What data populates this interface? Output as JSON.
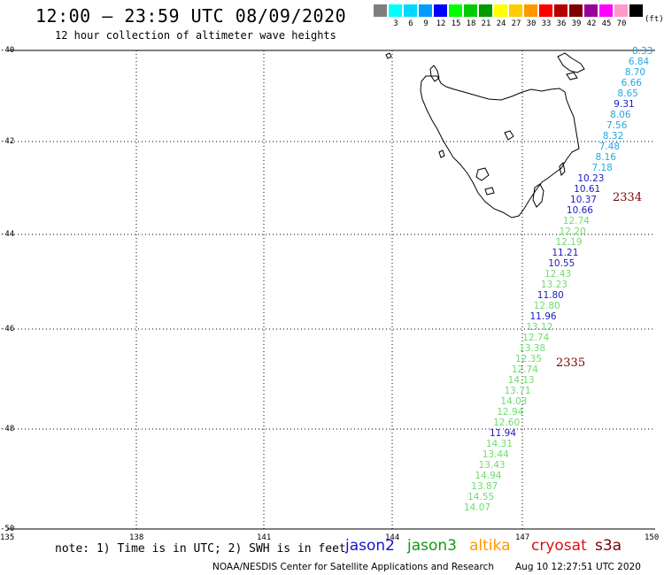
{
  "header": {
    "title": "12:00 – 23:59 UTC 08/09/2020",
    "subtitle": "12 hour collection of altimeter wave heights"
  },
  "color_scale": {
    "bins": [
      {
        "label": "",
        "color": "#7f7f7f"
      },
      {
        "label": "3",
        "color": "#00ffff"
      },
      {
        "label": "6",
        "color": "#00d8ff"
      },
      {
        "label": "9",
        "color": "#009cff"
      },
      {
        "label": "12",
        "color": "#0000ff"
      },
      {
        "label": "15",
        "color": "#00ff00"
      },
      {
        "label": "18",
        "color": "#00cc00"
      },
      {
        "label": "21",
        "color": "#009900"
      },
      {
        "label": "24",
        "color": "#ffff00"
      },
      {
        "label": "27",
        "color": "#ffcc00"
      },
      {
        "label": "30",
        "color": "#ff9900"
      },
      {
        "label": "33",
        "color": "#ff0000"
      },
      {
        "label": "36",
        "color": "#b40000"
      },
      {
        "label": "39",
        "color": "#7f0000"
      },
      {
        "label": "42",
        "color": "#990099"
      },
      {
        "label": "45",
        "color": "#ff00ff"
      },
      {
        "label": "70",
        "color": "#ff99cc"
      },
      {
        "label": "",
        "color": "#000000"
      }
    ],
    "unit": "(ft)"
  },
  "map": {
    "lat_ticks": [
      "-40",
      "-42",
      "-44",
      "-46",
      "-48",
      "-50"
    ],
    "lon_ticks": [
      "135",
      "138",
      "141",
      "144",
      "147",
      "150"
    ]
  },
  "observations": [
    {
      "v": "8.33",
      "c": "#27a7e0"
    },
    {
      "v": "6.84",
      "c": "#27a7e0"
    },
    {
      "v": "8.70",
      "c": "#27a7e0"
    },
    {
      "v": "6.66",
      "c": "#27a7e0"
    },
    {
      "v": "8.65",
      "c": "#27a7e0"
    },
    {
      "v": "9.31",
      "c": "#1c1cc0"
    },
    {
      "v": "8.06",
      "c": "#27a7e0"
    },
    {
      "v": "7.56",
      "c": "#27a7e0"
    },
    {
      "v": "8.32",
      "c": "#27a7e0"
    },
    {
      "v": "7.48",
      "c": "#27a7e0"
    },
    {
      "v": "8.16",
      "c": "#27a7e0"
    },
    {
      "v": "7.18",
      "c": "#27a7e0"
    },
    {
      "v": "10.23",
      "c": "#1c1cc0"
    },
    {
      "v": "10.61",
      "c": "#1c1cc0"
    },
    {
      "v": "10.37",
      "c": "#1c1cc0"
    },
    {
      "v": "10.66",
      "c": "#1c1cc0"
    },
    {
      "v": "12.74",
      "c": "#6fdc6f"
    },
    {
      "v": "12.20",
      "c": "#6fdc6f"
    },
    {
      "v": "12.19",
      "c": "#6fdc6f"
    },
    {
      "v": "11.21",
      "c": "#1c1cc0"
    },
    {
      "v": "10.55",
      "c": "#1c1cc0"
    },
    {
      "v": "12.43",
      "c": "#6fdc6f"
    },
    {
      "v": "13.23",
      "c": "#6fdc6f"
    },
    {
      "v": "11.80",
      "c": "#1c1cc0"
    },
    {
      "v": "12.80",
      "c": "#6fdc6f"
    },
    {
      "v": "11.96",
      "c": "#1c1cc0"
    },
    {
      "v": "13.12",
      "c": "#6fdc6f"
    },
    {
      "v": "12.74",
      "c": "#6fdc6f"
    },
    {
      "v": "13.38",
      "c": "#6fdc6f"
    },
    {
      "v": "12.35",
      "c": "#6fdc6f"
    },
    {
      "v": "12.74",
      "c": "#6fdc6f"
    },
    {
      "v": "14.13",
      "c": "#6fdc6f"
    },
    {
      "v": "13.71",
      "c": "#6fdc6f"
    },
    {
      "v": "14.03",
      "c": "#6fdc6f"
    },
    {
      "v": "12.94",
      "c": "#6fdc6f"
    },
    {
      "v": "12.60",
      "c": "#6fdc6f"
    },
    {
      "v": "11.94",
      "c": "#1c1cc0"
    },
    {
      "v": "14.31",
      "c": "#6fdc6f"
    },
    {
      "v": "13.44",
      "c": "#6fdc6f"
    },
    {
      "v": "13.43",
      "c": "#6fdc6f"
    },
    {
      "v": "14.94",
      "c": "#6fdc6f"
    },
    {
      "v": "13.87",
      "c": "#6fdc6f"
    },
    {
      "v": "14.55",
      "c": "#6fdc6f"
    },
    {
      "v": "14.07",
      "c": "#6fdc6f"
    }
  ],
  "pass_labels": [
    "2334",
    "2335"
  ],
  "footer": {
    "note": "note: 1) Time is in UTC; 2) SWH is in feet",
    "satellites": [
      {
        "name": "jason2",
        "color": "#1515c8"
      },
      {
        "name": "jason3",
        "color": "#119911"
      },
      {
        "name": "altika",
        "color": "#ff9900"
      },
      {
        "name": "cryosat",
        "color": "#dd1111"
      },
      {
        "name": "s3a",
        "color": "#7a0000"
      }
    ],
    "credit": "NOAA/NESDIS Center for Satellite Applications and Research",
    "timestamp": "Aug 10 12:27:51 UTC 2020"
  }
}
